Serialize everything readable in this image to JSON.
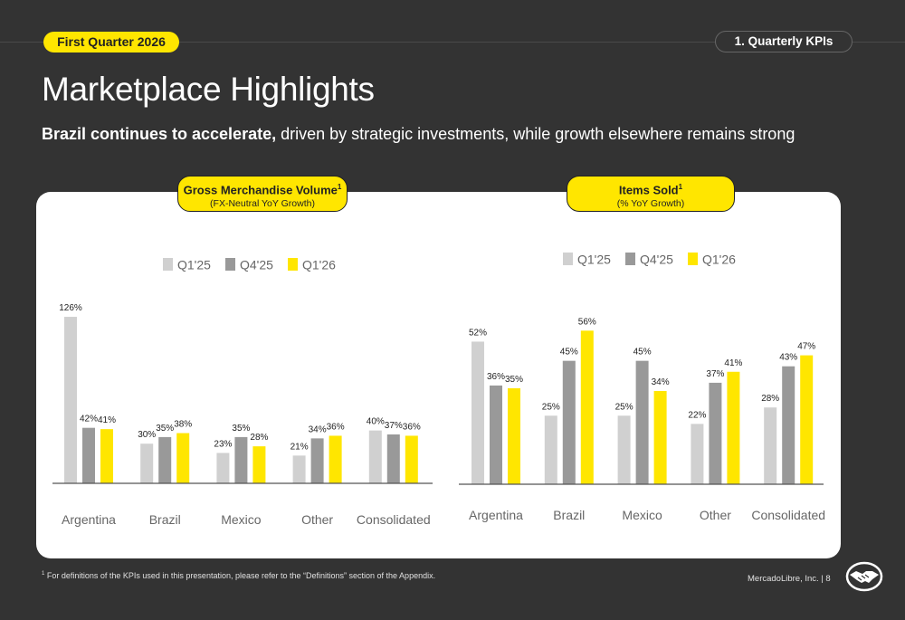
{
  "header": {
    "period": "First Quarter 2026",
    "section": "1. Quarterly KPIs",
    "title": "Marketplace Highlights",
    "subtitle_bold": "Brazil continues to accelerate,",
    "subtitle_rest": " driven by strategic investments, while growth elsewhere remains strong"
  },
  "footer": {
    "footnote_marker": "1",
    "footnote": " For definitions of the KPIs used in this presentation, please refer to the “Definitions” section of the Appendix.",
    "company_page": "MercadoLibre, Inc.  |  8"
  },
  "colors": {
    "q1_25": "#d0d0d0",
    "q4_25": "#999999",
    "q1_26": "#ffe600",
    "background": "#333333"
  },
  "chart_data": [
    {
      "type": "bar",
      "title": "Gross Merchandise Volume",
      "title_marker": "1",
      "subtitle": "(FX-Neutral YoY Growth)",
      "categories": [
        "Argentina",
        "Brazil",
        "Mexico",
        "Other",
        "Consolidated"
      ],
      "series": [
        {
          "name": "Q1'25",
          "values": [
            126,
            30,
            23,
            21,
            40
          ],
          "labels": [
            "126%",
            "30%",
            "23%",
            "21%",
            "40%"
          ]
        },
        {
          "name": "Q4'25",
          "values": [
            42,
            35,
            35,
            34,
            37
          ],
          "labels": [
            "42%",
            "35%",
            "35%",
            "34%",
            "37%"
          ]
        },
        {
          "name": "Q1'26",
          "values": [
            41,
            38,
            28,
            36,
            36
          ],
          "labels": [
            "41%",
            "38%",
            "28%",
            "36%",
            "36%"
          ]
        }
      ],
      "ylim": [
        0,
        126
      ],
      "legend": "top"
    },
    {
      "type": "bar",
      "title": "Items Sold",
      "title_marker": "1",
      "subtitle": "(% YoY Growth)",
      "categories": [
        "Argentina",
        "Brazil",
        "Mexico",
        "Other",
        "Consolidated"
      ],
      "series": [
        {
          "name": "Q1'25",
          "values": [
            52,
            25,
            25,
            22,
            28
          ],
          "labels": [
            "52%",
            "25%",
            "25%",
            "22%",
            "28%"
          ]
        },
        {
          "name": "Q4'25",
          "values": [
            36,
            45,
            45,
            37,
            43
          ],
          "labels": [
            "36%",
            "45%",
            "45%",
            "37%",
            "43%"
          ]
        },
        {
          "name": "Q1'26",
          "values": [
            35,
            56,
            34,
            41,
            47
          ],
          "labels": [
            "35%",
            "56%",
            "34%",
            "41%",
            "47%"
          ]
        }
      ],
      "ylim": [
        0,
        56
      ],
      "legend": "top"
    }
  ]
}
